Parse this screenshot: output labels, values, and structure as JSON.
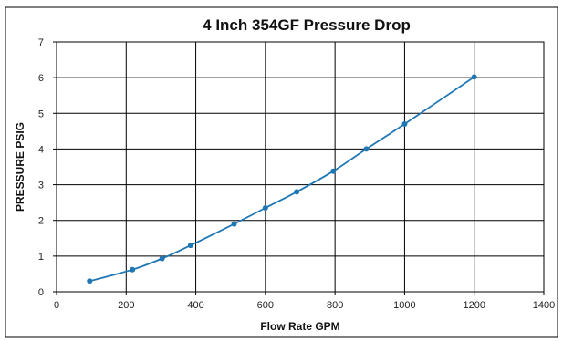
{
  "chart_data": {
    "type": "line",
    "title": "4 Inch 354GF Pressure Drop",
    "xlabel": "Flow Rate GPM",
    "ylabel": "PRESSURE PSIG",
    "xlim": [
      0,
      1400
    ],
    "ylim": [
      0,
      7
    ],
    "x_ticks": [
      "0",
      "200",
      "400",
      "600",
      "800",
      "1000",
      "1200",
      "1400"
    ],
    "y_ticks": [
      "0",
      "1",
      "2",
      "3",
      "4",
      "5",
      "6",
      "7"
    ],
    "grid": true,
    "series": [
      {
        "color": "#1f77b4",
        "points": [
          {
            "x": 95,
            "y": 0.3
          },
          {
            "x": 218,
            "y": 0.62
          },
          {
            "x": 303,
            "y": 0.93
          },
          {
            "x": 385,
            "y": 1.3
          },
          {
            "x": 510,
            "y": 1.9
          },
          {
            "x": 600,
            "y": 2.35
          },
          {
            "x": 690,
            "y": 2.8
          },
          {
            "x": 795,
            "y": 3.38
          },
          {
            "x": 890,
            "y": 4.0
          },
          {
            "x": 1000,
            "y": 4.7
          },
          {
            "x": 1200,
            "y": 6.02
          }
        ]
      }
    ]
  }
}
